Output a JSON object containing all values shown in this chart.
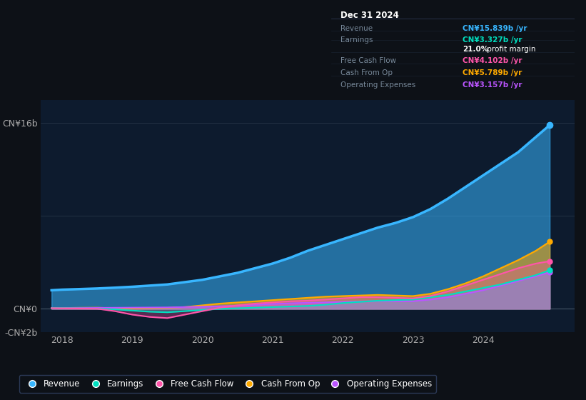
{
  "background_color": "#0d1117",
  "plot_bg_color": "#0d1b2e",
  "ylim": [
    -2000000000.0,
    18000000000.0
  ],
  "yticks": [
    -2000000000.0,
    0,
    16000000000.0
  ],
  "ytick_labels": [
    "-CN¥2b",
    "CN¥0",
    "CN¥16b"
  ],
  "x_years": [
    2017.85,
    2018.0,
    2018.25,
    2018.5,
    2018.75,
    2019.0,
    2019.25,
    2019.5,
    2019.75,
    2020.0,
    2020.25,
    2020.5,
    2020.75,
    2021.0,
    2021.25,
    2021.5,
    2021.75,
    2022.0,
    2022.25,
    2022.5,
    2022.75,
    2023.0,
    2023.25,
    2023.5,
    2023.75,
    2024.0,
    2024.25,
    2024.5,
    2024.75,
    2024.95
  ],
  "revenue": [
    1600000000.0,
    1650000000.0,
    1700000000.0,
    1750000000.0,
    1820000000.0,
    1900000000.0,
    2000000000.0,
    2100000000.0,
    2300000000.0,
    2500000000.0,
    2800000000.0,
    3100000000.0,
    3500000000.0,
    3900000000.0,
    4400000000.0,
    5000000000.0,
    5500000000.0,
    6000000000.0,
    6500000000.0,
    7000000000.0,
    7400000000.0,
    7900000000.0,
    8600000000.0,
    9500000000.0,
    10500000000.0,
    11500000000.0,
    12500000000.0,
    13500000000.0,
    14800000000.0,
    15839000000.0
  ],
  "earnings": [
    50000000.0,
    40000000.0,
    30000000.0,
    20000000.0,
    -50000000.0,
    -150000000.0,
    -250000000.0,
    -300000000.0,
    -200000000.0,
    -100000000.0,
    0.0,
    50000000.0,
    100000000.0,
    150000000.0,
    200000000.0,
    250000000.0,
    350000000.0,
    500000000.0,
    600000000.0,
    700000000.0,
    750000000.0,
    800000000.0,
    1000000000.0,
    1200000000.0,
    1500000000.0,
    1800000000.0,
    2100000000.0,
    2500000000.0,
    2900000000.0,
    3327000000.0
  ],
  "free_cash_flow": [
    50000000.0,
    30000000.0,
    20000000.0,
    10000000.0,
    -200000000.0,
    -500000000.0,
    -700000000.0,
    -800000000.0,
    -500000000.0,
    -200000000.0,
    100000000.0,
    300000000.0,
    450000000.0,
    550000000.0,
    650000000.0,
    700000000.0,
    800000000.0,
    900000000.0,
    1000000000.0,
    1000000000.0,
    950000000.0,
    900000000.0,
    1100000000.0,
    1500000000.0,
    2000000000.0,
    2500000000.0,
    3000000000.0,
    3500000000.0,
    3900000000.0,
    4102000000.0
  ],
  "cash_from_op": [
    80000000.0,
    70000000.0,
    90000000.0,
    100000000.0,
    50000000.0,
    30000000.0,
    50000000.0,
    80000000.0,
    150000000.0,
    300000000.0,
    450000000.0,
    550000000.0,
    650000000.0,
    750000000.0,
    850000000.0,
    950000000.0,
    1050000000.0,
    1100000000.0,
    1150000000.0,
    1200000000.0,
    1150000000.0,
    1100000000.0,
    1300000000.0,
    1700000000.0,
    2200000000.0,
    2800000000.0,
    3500000000.0,
    4200000000.0,
    5000000000.0,
    5789000000.0
  ],
  "operating_expenses": [
    60000000.0,
    60000000.0,
    70000000.0,
    80000000.0,
    90000000.0,
    100000000.0,
    110000000.0,
    120000000.0,
    150000000.0,
    180000000.0,
    220000000.0,
    280000000.0,
    350000000.0,
    420000000.0,
    480000000.0,
    520000000.0,
    560000000.0,
    600000000.0,
    640000000.0,
    680000000.0,
    660000000.0,
    650000000.0,
    800000000.0,
    1000000000.0,
    1300000000.0,
    1600000000.0,
    2000000000.0,
    2400000000.0,
    2800000000.0,
    3157000000.0
  ],
  "revenue_color": "#38b6ff",
  "earnings_color": "#00e0c0",
  "free_cash_flow_color": "#ff55aa",
  "cash_from_op_color": "#ffaa00",
  "operating_expenses_color": "#bb55ff",
  "legend_labels": [
    "Revenue",
    "Earnings",
    "Free Cash Flow",
    "Cash From Op",
    "Operating Expenses"
  ],
  "info_box_title": "Dec 31 2024",
  "info_rows": [
    {
      "label": "Revenue",
      "value": "CN¥15.839b /yr",
      "color": "#38b6ff"
    },
    {
      "label": "Earnings",
      "value": "CN¥3.327b /yr",
      "color": "#00e0c0"
    },
    {
      "label": "",
      "value": "21.0%",
      "suffix": " profit margin",
      "color": "#ffffff"
    },
    {
      "label": "Free Cash Flow",
      "value": "CN¥4.102b /yr",
      "color": "#ff55aa"
    },
    {
      "label": "Cash From Op",
      "value": "CN¥5.789b /yr",
      "color": "#ffaa00"
    },
    {
      "label": "Operating Expenses",
      "value": "CN¥3.157b /yr",
      "color": "#bb55ff"
    }
  ]
}
